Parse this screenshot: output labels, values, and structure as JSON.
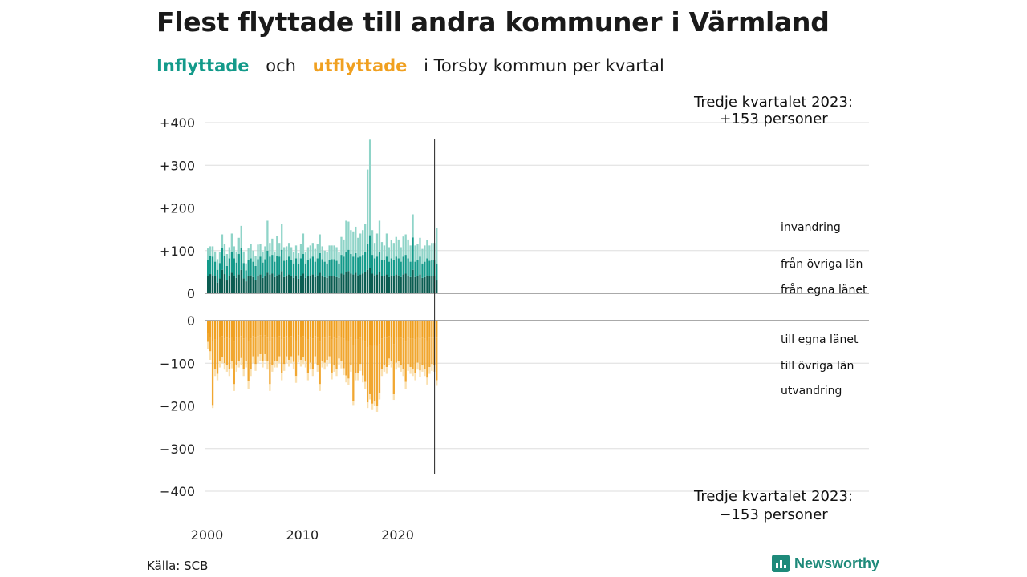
{
  "title": "Flest flyttade till andra kommuner i Värmland",
  "subtitle": {
    "inflow": "Inflyttade",
    "and": "och",
    "outflow": "utflyttade",
    "rest": "i Torsby kommun per kvartal"
  },
  "source": "Källa: SCB",
  "brand": "Newsworthy",
  "colors": {
    "in_own": "#0b5c51",
    "in_other": "#139a8a",
    "in_immig": "#8fd4c8",
    "out_own": "#f0a020",
    "out_other": "#f6c46e",
    "out_emig": "#fae0b0",
    "grid": "#dddddd"
  },
  "chart_data": {
    "type": "bar",
    "stacked": true,
    "x_start": 2000,
    "x_ticks": [
      "2000",
      "2010",
      "2020"
    ],
    "y_ticks_top": [
      "+400",
      "+300",
      "+200",
      "+100",
      "0"
    ],
    "y_ticks_bottom": [
      "0",
      "−100",
      "−200",
      "−300",
      "−400"
    ],
    "ylim_top": [
      0,
      400
    ],
    "ylim_bottom": [
      -400,
      0
    ],
    "annotation_top": [
      "Tredje kvartalet 2023:",
      "+153 personer"
    ],
    "annotation_bottom": [
      "Tredje kvartalet 2023:",
      "−153 personer"
    ],
    "inflow_labels": [
      "invandring",
      "från övriga län",
      "från egna länet"
    ],
    "outflow_labels": [
      "till egna länet",
      "till övriga län",
      "utvandring"
    ],
    "inflow_totals": [
      105,
      110,
      110,
      98,
      80,
      96,
      138,
      115,
      92,
      108,
      140,
      110,
      98,
      130,
      158,
      98,
      70,
      105,
      115,
      100,
      88,
      114,
      116,
      98,
      110,
      170,
      118,
      128,
      98,
      135,
      118,
      162,
      108,
      110,
      118,
      108,
      96,
      112,
      94,
      115,
      140,
      96,
      108,
      112,
      118,
      104,
      115,
      138,
      110,
      100,
      96,
      112,
      112,
      112,
      108,
      96,
      132,
      126,
      170,
      168,
      148,
      145,
      156,
      130,
      140,
      148,
      162,
      290,
      360,
      148,
      118,
      140,
      170,
      120,
      112,
      140,
      108,
      125,
      118,
      132,
      126,
      108,
      133,
      138,
      126,
      112,
      185,
      112,
      115,
      130,
      104,
      112,
      125,
      112,
      118,
      118,
      153
    ],
    "inflow_own": [
      40,
      45,
      42,
      40,
      25,
      35,
      55,
      45,
      30,
      42,
      48,
      42,
      36,
      44,
      55,
      35,
      28,
      40,
      42,
      38,
      32,
      40,
      44,
      36,
      40,
      48,
      44,
      46,
      38,
      42,
      44,
      52,
      38,
      40,
      44,
      40,
      36,
      42,
      34,
      42,
      46,
      36,
      40,
      42,
      44,
      38,
      42,
      48,
      40,
      38,
      36,
      40,
      40,
      40,
      38,
      36,
      46,
      44,
      50,
      52,
      46,
      44,
      48,
      42,
      44,
      46,
      50,
      55,
      60,
      46,
      42,
      44,
      50,
      40,
      40,
      44,
      38,
      42,
      40,
      44,
      42,
      38,
      44,
      46,
      42,
      38,
      55,
      38,
      40,
      44,
      36,
      38,
      42,
      40,
      40,
      40,
      30
    ],
    "inflow_other": [
      38,
      42,
      44,
      34,
      30,
      36,
      52,
      42,
      34,
      40,
      48,
      40,
      36,
      48,
      52,
      36,
      26,
      38,
      40,
      36,
      32,
      40,
      42,
      36,
      40,
      52,
      42,
      44,
      36,
      46,
      42,
      50,
      38,
      38,
      42,
      38,
      34,
      40,
      34,
      40,
      46,
      34,
      38,
      40,
      42,
      36,
      40,
      46,
      40,
      36,
      34,
      38,
      40,
      40,
      38,
      34,
      44,
      42,
      48,
      50,
      46,
      42,
      46,
      42,
      42,
      44,
      48,
      60,
      76,
      44,
      40,
      42,
      48,
      38,
      38,
      42,
      36,
      40,
      38,
      42,
      40,
      36,
      42,
      44,
      40,
      36,
      76,
      36,
      38,
      42,
      34,
      36,
      40,
      36,
      38,
      38,
      40
    ],
    "outflow_totals": [
      66,
      92,
      205,
      130,
      140,
      110,
      100,
      115,
      120,
      130,
      112,
      165,
      120,
      110,
      105,
      130,
      110,
      160,
      130,
      100,
      118,
      100,
      95,
      110,
      95,
      115,
      165,
      120,
      110,
      110,
      100,
      140,
      118,
      100,
      108,
      100,
      113,
      146,
      98,
      108,
      102,
      110,
      140,
      115,
      130,
      100,
      120,
      165,
      110,
      115,
      108,
      100,
      138,
      120,
      130,
      105,
      112,
      128,
      145,
      152,
      120,
      198,
      140,
      140,
      118,
      145,
      160,
      205,
      185,
      208,
      200,
      214,
      185,
      130,
      120,
      125,
      105,
      110,
      186,
      115,
      110,
      120,
      130,
      160,
      118,
      125,
      130,
      140,
      115,
      133,
      120,
      130,
      150,
      125,
      118,
      120,
      153
    ],
    "outflow_own": [
      30,
      38,
      48,
      44,
      45,
      38,
      36,
      42,
      40,
      42,
      38,
      50,
      40,
      38,
      36,
      42,
      38,
      48,
      42,
      36,
      40,
      36,
      34,
      38,
      34,
      40,
      50,
      40,
      38,
      38,
      36,
      44,
      40,
      36,
      38,
      36,
      38,
      46,
      34,
      38,
      36,
      38,
      44,
      40,
      42,
      36,
      40,
      50,
      38,
      40,
      38,
      36,
      44,
      40,
      42,
      36,
      38,
      42,
      46,
      48,
      40,
      58,
      44,
      44,
      40,
      46,
      50,
      62,
      58,
      60,
      58,
      60,
      56,
      42,
      40,
      40,
      36,
      38,
      56,
      38,
      38,
      40,
      42,
      50,
      40,
      42,
      42,
      44,
      38,
      42,
      40,
      42,
      46,
      40,
      40,
      40,
      40
    ],
    "outflow_other": [
      20,
      34,
      150,
      70,
      80,
      58,
      50,
      58,
      64,
      72,
      58,
      99,
      64,
      56,
      52,
      72,
      56,
      95,
      72,
      48,
      62,
      48,
      45,
      56,
      45,
      56,
      99,
      64,
      56,
      56,
      48,
      80,
      62,
      48,
      54,
      48,
      59,
      84,
      48,
      54,
      50,
      56,
      80,
      59,
      72,
      48,
      64,
      99,
      56,
      59,
      54,
      48,
      78,
      64,
      72,
      53,
      58,
      70,
      83,
      88,
      64,
      130,
      80,
      80,
      62,
      83,
      94,
      130,
      115,
      135,
      130,
      140,
      115,
      72,
      64,
      69,
      53,
      56,
      117,
      61,
      56,
      64,
      72,
      94,
      62,
      67,
      72,
      80,
      61,
      75,
      64,
      72,
      88,
      69,
      62,
      64,
      100
    ]
  }
}
